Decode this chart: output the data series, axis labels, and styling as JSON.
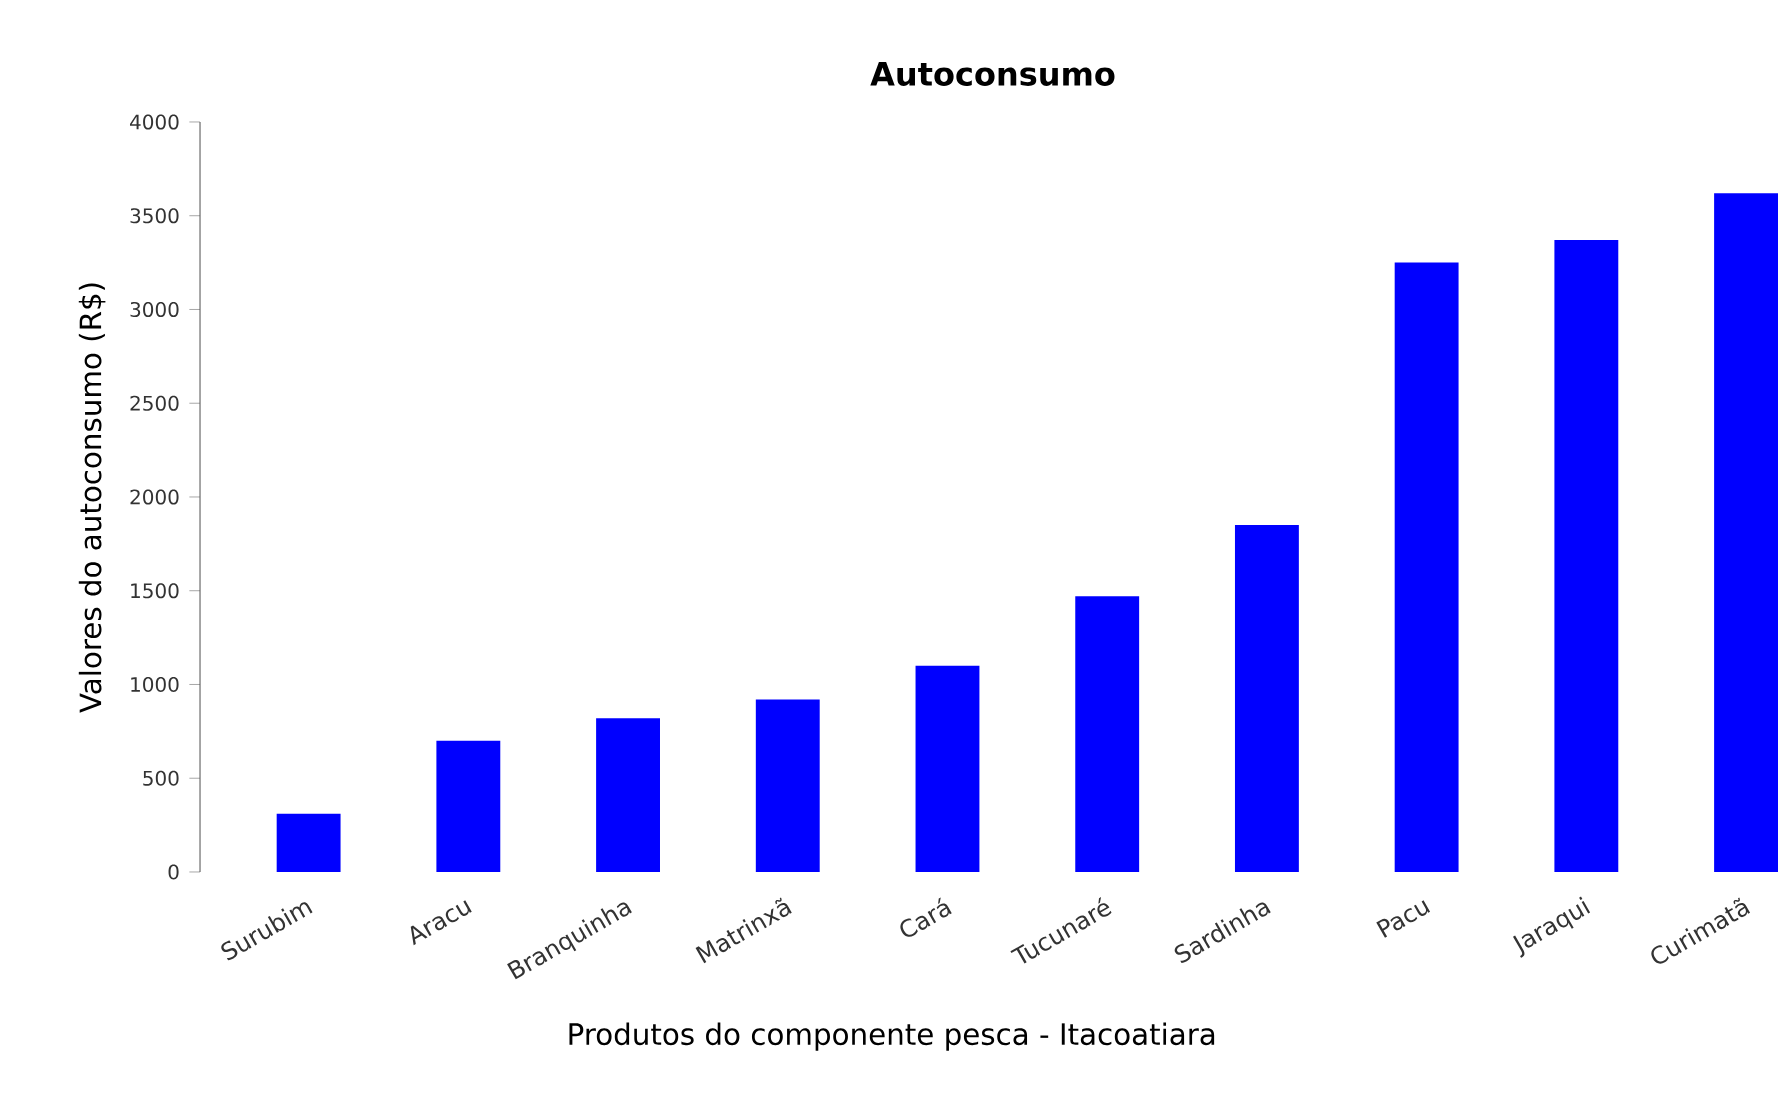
{
  "chart_data": {
    "type": "bar",
    "title": "Autoconsumo",
    "xlabel": "Produtos do componente pesca - Itacoatiara",
    "ylabel": "Valores do autoconsumo (R$)",
    "categories": [
      "Surubim",
      "Aracu",
      "Branquinha",
      "Matrinxã",
      "Cará",
      "Tucunaré",
      "Sardinha",
      "Pacu",
      "Jaraqui",
      "Curimatã"
    ],
    "values": [
      310,
      700,
      820,
      920,
      1100,
      1470,
      1850,
      3250,
      3370,
      3620
    ],
    "color": "#0000ff",
    "ylim": [
      0,
      4000
    ],
    "yticks": [
      0,
      500,
      1000,
      1500,
      2000,
      2500,
      3000,
      3500,
      4000
    ],
    "grid": false
  }
}
